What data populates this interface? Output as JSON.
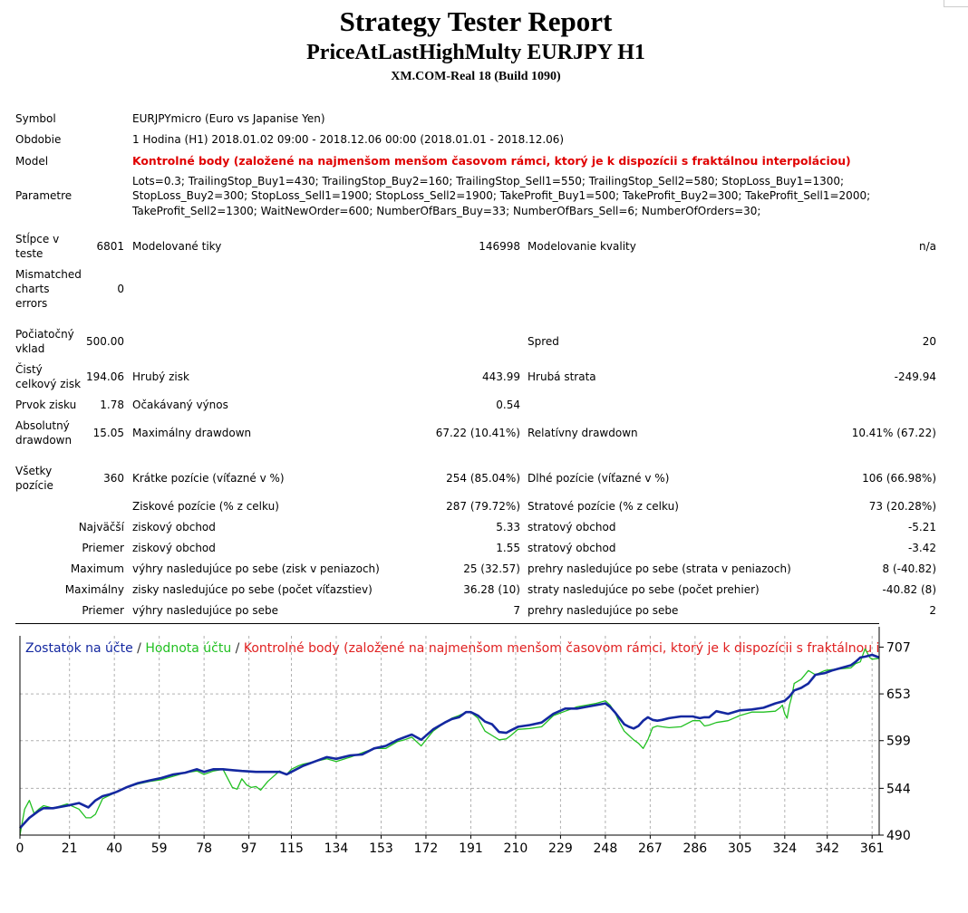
{
  "report": {
    "title": "Strategy Tester Report",
    "subtitle": "PriceAtLastHighMulty EURJPY H1",
    "server": "XM.COM-Real 18 (Build 1090)"
  },
  "info": {
    "symbol_label": "Symbol",
    "symbol_value": "EURJPYmicro (Euro vs Japanise Yen)",
    "period_label": "Obdobie",
    "period_value": "1 Hodina (H1) 2018.01.02 09:00 - 2018.12.06 00:00 (2018.01.01 - 2018.12.06)",
    "model_label": "Model",
    "model_value": "Kontrolné body (založené na najmenšom menšom časovom rámci, ktorý je k dispozícii s fraktálnou interpoláciou)",
    "params_label": "Parametre",
    "params_line1": "Lots=0.3; TrailingStop_Buy1=430; TrailingStop_Buy2=160; TrailingStop_Sell1=550; TrailingStop_Sell2=580; StopLoss_Buy1=1300;",
    "params_line2": "StopLoss_Buy2=300; StopLoss_Sell1=1900; StopLoss_Sell2=1900; TakeProfit_Buy1=500; TakeProfit_Buy2=300; TakeProfit_Sell1=2000;",
    "params_line3": "TakeProfit_Sell2=1300; WaitNewOrder=600; NumberOfBars_Buy=33; NumberOfBars_Sell=6; NumberOfOrders=30;"
  },
  "stats": {
    "bars_label_1": "Stĺpce v",
    "bars_label_2": "teste",
    "bars_value": "6801",
    "ticks_label": "Modelované tiky",
    "ticks_value": "146998",
    "quality_label": "Modelovanie kvality",
    "quality_value": "n/a",
    "mismatch_label_1": "Mismatched",
    "mismatch_label_2": "charts",
    "mismatch_label_3": "errors",
    "mismatch_value": "0",
    "deposit_label_1": "Počiatočný",
    "deposit_label_2": "vklad",
    "deposit_value": "500.00",
    "spread_label": "Spred",
    "spread_value": "20",
    "net_label_1": "Čistý",
    "net_label_2": "celkový zisk",
    "net_value": "194.06",
    "gross_profit_label": "Hrubý zisk",
    "gross_profit_value": "443.99",
    "gross_loss_label": "Hrubá strata",
    "gross_loss_value": "-249.94",
    "pf_label": "Prvok zisku",
    "pf_value": "1.78",
    "payoff_label": "Očakávaný výnos",
    "payoff_value": "0.54",
    "abs_dd_label_1": "Absolutný",
    "abs_dd_label_2": "drawdown",
    "abs_dd_value": "15.05",
    "max_dd_label": "Maximálny drawdown",
    "max_dd_value": "67.22 (10.41%)",
    "rel_dd_label": "Relatívny drawdown",
    "rel_dd_value": "10.41% (67.22)",
    "all_label_1": "Všetky",
    "all_label_2": "pozície",
    "all_value": "360",
    "short_label": "Krátke pozície (víťazné v %)",
    "short_value": "254 (85.04%)",
    "long_label": "Dlhé pozície (víťazné v %)",
    "long_value": "106 (66.98%)",
    "profit_trades_label": "Ziskové pozície (% z celku)",
    "profit_trades_value": "287 (79.72%)",
    "loss_trades_label": "Stratové pozície (% z celku)",
    "loss_trades_value": "73 (20.28%)",
    "largest_label": "Najväčší",
    "largest_profit_label": "ziskový obchod",
    "largest_profit_value": "5.33",
    "largest_loss_label": "stratový obchod",
    "largest_loss_value": "-5.21",
    "average_label": "Priemer",
    "average_profit_label": "ziskový obchod",
    "average_profit_value": "1.55",
    "average_loss_label": "stratový obchod",
    "average_loss_value": "-3.42",
    "maximum_label": "Maximum",
    "max_wins_label": "výhry nasledujúce po sebe (zisk v peniazoch)",
    "max_wins_value": "25 (32.57)",
    "max_losses_label": "prehry nasledujúce po sebe (strata v peniazoch)",
    "max_losses_value": "8 (-40.82)",
    "maximal_label": "Maximálny",
    "maximal_profit_label": "zisky nasledujúce po sebe (počet víťazstiev)",
    "maximal_profit_value": "36.28 (10)",
    "maximal_loss_label": "straty nasledujúce po sebe (počet prehier)",
    "maximal_loss_value": "-40.82 (8)",
    "avg_consec_label": "Priemer",
    "avg_wins_label": "výhry nasledujúce po sebe",
    "avg_wins_value": "7",
    "avg_losses_label": "prehry nasledujúce po sebe",
    "avg_losses_value": "2"
  },
  "chart_data": {
    "type": "line",
    "legend": {
      "balance": "Zostatok na účte",
      "equity": "Hodnota účtu",
      "model": "Kontrolné body (založené na najmenšom menšom časovom rámci, ktorý je k dispozícii s fraktálnou inter",
      "sep": " / "
    },
    "colors": {
      "balance": "#1428a0",
      "equity": "#22c022",
      "model": "#e02020",
      "axis": "#000000"
    },
    "xlim": [
      0,
      364
    ],
    "ylim": [
      490,
      720
    ],
    "x_ticks": [
      "0",
      "21",
      "40",
      "59",
      "78",
      "97",
      "115",
      "134",
      "153",
      "172",
      "191",
      "210",
      "229",
      "248",
      "267",
      "286",
      "305",
      "324",
      "342",
      "361"
    ],
    "y_ticks": [
      "707",
      "653",
      "599",
      "544",
      "490"
    ],
    "series": [
      {
        "name": "Zostatok na účte",
        "x": [
          0,
          4,
          8,
          10,
          14,
          20,
          25,
          29,
          32,
          35,
          38,
          41,
          45,
          50,
          55,
          60,
          65,
          70,
          75,
          78,
          82,
          86,
          90,
          94,
          100,
          105,
          110,
          113,
          115,
          120,
          125,
          130,
          134,
          140,
          145,
          150,
          155,
          160,
          163,
          166,
          170,
          175,
          180,
          183,
          186,
          189,
          191,
          194,
          197,
          200,
          203,
          206,
          208,
          211,
          216,
          221,
          226,
          231,
          236,
          240,
          244,
          248,
          250,
          252,
          254,
          256,
          258,
          260,
          262,
          264,
          266,
          268,
          270,
          272,
          275,
          280,
          285,
          288,
          290,
          292,
          295,
          300,
          305,
          310,
          315,
          320,
          324,
          326,
          328,
          331,
          334,
          337,
          341,
          344,
          348,
          352,
          354,
          356,
          358,
          361,
          364
        ],
        "values": [
          498,
          510,
          518,
          521,
          521,
          524,
          527,
          522,
          530,
          535,
          537,
          540,
          545,
          550,
          553,
          556,
          560,
          562,
          566,
          563,
          566,
          566,
          565,
          564,
          563,
          563,
          563,
          560,
          563,
          570,
          575,
          580,
          578,
          582,
          583,
          590,
          593,
          600,
          603,
          606,
          600,
          612,
          620,
          624,
          626,
          632,
          632,
          628,
          621,
          618,
          609,
          608,
          611,
          615,
          617,
          620,
          630,
          636,
          636,
          638,
          640,
          642,
          638,
          632,
          625,
          618,
          615,
          613,
          616,
          622,
          626,
          623,
          622,
          623,
          625,
          627,
          627,
          625,
          626,
          626,
          633,
          630,
          634,
          635,
          637,
          642,
          645,
          650,
          657,
          660,
          665,
          675,
          677,
          680,
          683,
          686,
          690,
          695,
          696,
          698,
          695
        ]
      },
      {
        "name": "Hodnota účtu",
        "x": [
          0,
          2,
          4,
          6,
          8,
          10,
          14,
          20,
          25,
          28,
          30,
          32,
          35,
          38,
          41,
          45,
          50,
          55,
          60,
          65,
          70,
          75,
          78,
          82,
          86,
          90,
          92,
          94,
          96,
          98,
          100,
          102,
          105,
          110,
          113,
          115,
          118,
          120,
          125,
          130,
          134,
          140,
          145,
          150,
          155,
          160,
          163,
          166,
          170,
          175,
          180,
          183,
          186,
          189,
          191,
          194,
          197,
          200,
          203,
          206,
          208,
          211,
          216,
          221,
          226,
          231,
          236,
          240,
          244,
          248,
          250,
          252,
          254,
          256,
          258,
          260,
          262,
          264,
          266,
          268,
          270,
          272,
          275,
          280,
          285,
          288,
          290,
          292,
          295,
          300,
          305,
          310,
          315,
          320,
          322,
          323,
          324,
          325,
          326,
          327,
          328,
          331,
          334,
          337,
          341,
          344,
          348,
          352,
          354,
          356,
          358,
          360,
          361,
          364
        ],
        "values": [
          490,
          520,
          530,
          515,
          520,
          524,
          521,
          526,
          520,
          510,
          510,
          514,
          532,
          536,
          540,
          545,
          549,
          552,
          554,
          558,
          562,
          564,
          560,
          564,
          566,
          545,
          543,
          555,
          548,
          545,
          546,
          542,
          552,
          564,
          560,
          566,
          570,
          572,
          575,
          578,
          575,
          580,
          585,
          590,
          590,
          598,
          600,
          603,
          593,
          610,
          620,
          625,
          628,
          632,
          632,
          625,
          610,
          605,
          600,
          601,
          605,
          612,
          613,
          615,
          628,
          633,
          638,
          640,
          642,
          645,
          640,
          632,
          620,
          610,
          605,
          600,
          596,
          590,
          600,
          614,
          616,
          615,
          614,
          615,
          622,
          622,
          616,
          617,
          620,
          622,
          628,
          632,
          632,
          633,
          637,
          640,
          630,
          625,
          640,
          650,
          665,
          670,
          680,
          675,
          680,
          681,
          682,
          683,
          688,
          690,
          705,
          695,
          693,
          694
        ]
      }
    ]
  }
}
